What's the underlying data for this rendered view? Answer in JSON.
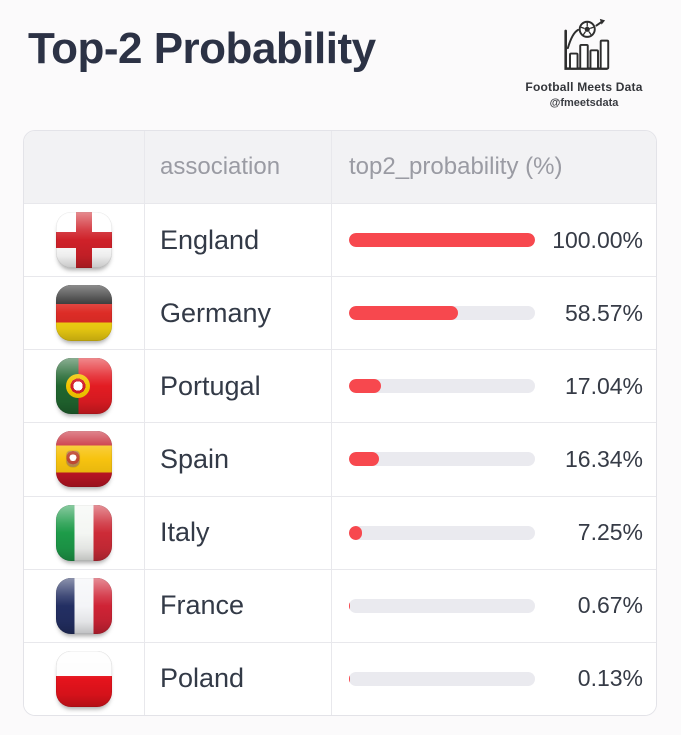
{
  "header": {
    "title": "Top-2 Probability",
    "brand": {
      "name": "Football Meets Data",
      "handle": "@fmeetsdata",
      "icon": "bar-chart-with-football-and-arrow-icon"
    }
  },
  "table": {
    "columns": [
      {
        "key": "flag",
        "label": ""
      },
      {
        "key": "association",
        "label": "association"
      },
      {
        "key": "top2_probability",
        "label": "top2_probability (%)"
      }
    ],
    "rows": [
      {
        "flag_icon": "england-flag-icon",
        "association": "England",
        "probability": 100.0,
        "probability_label": "100.00%"
      },
      {
        "flag_icon": "germany-flag-icon",
        "association": "Germany",
        "probability": 58.57,
        "probability_label": "58.57%"
      },
      {
        "flag_icon": "portugal-flag-icon",
        "association": "Portugal",
        "probability": 17.04,
        "probability_label": "17.04%"
      },
      {
        "flag_icon": "spain-flag-icon",
        "association": "Spain",
        "probability": 16.34,
        "probability_label": "16.34%"
      },
      {
        "flag_icon": "italy-flag-icon",
        "association": "Italy",
        "probability": 7.25,
        "probability_label": "7.25%"
      },
      {
        "flag_icon": "france-flag-icon",
        "association": "France",
        "probability": 0.67,
        "probability_label": "0.67%"
      },
      {
        "flag_icon": "poland-flag-icon",
        "association": "Poland",
        "probability": 0.13,
        "probability_label": "0.13%"
      }
    ]
  },
  "colors": {
    "bar_fill": "#f7484e",
    "bar_track": "#eaeaef",
    "header_background": "#f2f2f4",
    "header_text": "#9a9ba3",
    "title_text": "#2c3245",
    "body_text": "#333a47",
    "page_background": "#fbfafb",
    "table_border": "#e3e3e8"
  },
  "chart_data": {
    "type": "bar",
    "orientation": "horizontal",
    "title": "Top-2 Probability",
    "categories": [
      "England",
      "Germany",
      "Portugal",
      "Spain",
      "Italy",
      "France",
      "Poland"
    ],
    "values": [
      100.0,
      58.57,
      17.04,
      16.34,
      7.25,
      0.67,
      0.13
    ],
    "value_labels": [
      "100.00%",
      "58.57%",
      "17.04%",
      "16.34%",
      "7.25%",
      "0.67%",
      "0.13%"
    ],
    "xlabel": "top2_probability (%)",
    "ylabel": "association",
    "xlim": [
      0,
      100
    ],
    "grid": false,
    "legend": false
  }
}
